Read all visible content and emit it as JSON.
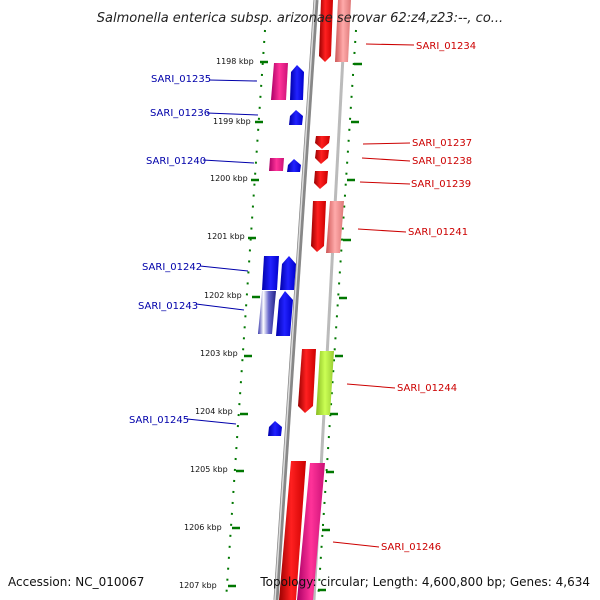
{
  "title": "Salmonella enterica subsp. arizonae serovar 62:z4,z23:--, co...",
  "footer": {
    "accession": "Accession: NC_010067",
    "topology": "Topology: circular; Length: 4,600,800 bp; Genes: 4,634"
  },
  "ticks": [
    "1198 kbp",
    "1199 kbp",
    "1200 kbp",
    "1201 kbp",
    "1202 kbp",
    "1203 kbp",
    "1204 kbp",
    "1205 kbp",
    "1206 kbp",
    "1207 kbp"
  ],
  "genes_left": [
    "SARI_01235",
    "SARI_01236",
    "SARI_01240",
    "SARI_01242",
    "SARI_01243",
    "SARI_01245"
  ],
  "genes_right": [
    "SARI_01234",
    "SARI_01237",
    "SARI_01238",
    "SARI_01239",
    "SARI_01241",
    "SARI_01244",
    "SARI_01246"
  ],
  "colors": {
    "forward": "#ff0000",
    "reverse": "#0000ff",
    "left_label": "#0000aa",
    "right_label": "#cc0000",
    "tick": "#007700"
  }
}
